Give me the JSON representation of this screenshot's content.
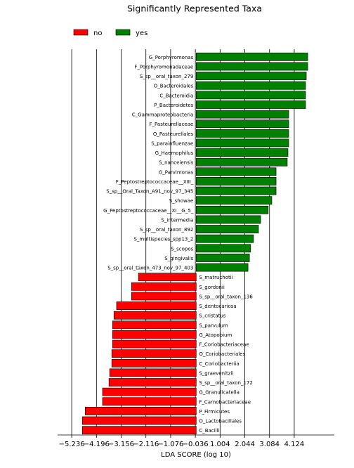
{
  "chart_data": {
    "type": "barh",
    "title": "Significantly Represented Taxa",
    "x_label": "LDA SCORE (log 10)",
    "categories": [
      "G_Porphyromonas",
      "F_Porphyromonadaceae",
      "S_sp__oral_taxon_279",
      "O_Bacteroidales",
      "C_Bacteroidia",
      "P_Bacteroidetes",
      "C_Gammaproteobacteria",
      "F_Pasteurellaceae",
      "O_Pasteurellales",
      "S_parainfluenzae",
      "G_Haemophilus",
      "S_nanceiensis",
      "G_Parvimonas",
      "F_Peptostreptococcaceae__XIII_",
      "S_sp__Oral_Taxon_A91_nov_97_345",
      "S_showae",
      "G_Peptostreptococcaceae__XI__G_5_",
      "S_intermedia",
      "S_sp__oral_taxon_892",
      "S_multispecies_spp13_2",
      "S_scopos",
      "S_gingivalis",
      "S_sp__oral_taxon_473_nov_97_403",
      "S_matruchotii",
      "S_gordonii",
      "S_sp__oral_taxon_136",
      "S_dentocariosa",
      "S_cristatus",
      "S_parvulum",
      "G_Atopobium",
      "F_Coriobacteriaceae",
      "O_Coriobacteriales",
      "C_Coriobacteriia",
      "S_graevenitzii",
      "S_sp__oral_taxon_172",
      "G_Granulicatella",
      "F_Carnobacteriaceae",
      "P_Firmicutes",
      "O_Lactobacillales",
      "C_Bacilli"
    ],
    "series": [
      {
        "name": "no",
        "color": "#ff0000",
        "values": [
          null,
          null,
          null,
          null,
          null,
          null,
          null,
          null,
          null,
          null,
          null,
          null,
          null,
          null,
          null,
          null,
          null,
          null,
          null,
          null,
          null,
          null,
          null,
          -2.43,
          -2.72,
          -2.72,
          -3.35,
          -3.46,
          -3.52,
          -3.52,
          -3.52,
          -3.55,
          -3.55,
          -3.64,
          -3.67,
          -3.94,
          -3.94,
          -4.67,
          -4.79,
          -4.79
        ]
      },
      {
        "name": "yes",
        "color": "#008000",
        "values": [
          4.69,
          4.69,
          4.63,
          4.6,
          4.6,
          4.6,
          3.89,
          3.89,
          3.89,
          3.89,
          3.86,
          3.83,
          3.36,
          3.36,
          3.36,
          3.18,
          3.03,
          2.71,
          2.62,
          2.41,
          2.29,
          2.24,
          2.18,
          null,
          null,
          null,
          null,
          null,
          null,
          null,
          null,
          null,
          null,
          null,
          null,
          null,
          null,
          null,
          null,
          null
        ]
      }
    ],
    "xlim": [
      -5.83,
      5.81
    ],
    "xticks": [
      {
        "value": -5.236,
        "label": "−5.236"
      },
      {
        "value": -4.196,
        "label": "−4.196"
      },
      {
        "value": -3.156,
        "label": "−3.156"
      },
      {
        "value": -2.116,
        "label": "−2.116"
      },
      {
        "value": -1.076,
        "label": "−1.076"
      },
      {
        "value": -0.036,
        "label": "−0.036"
      },
      1.004,
      2.044,
      3.084,
      4.124
    ],
    "grid": true,
    "legend": "top left"
  }
}
